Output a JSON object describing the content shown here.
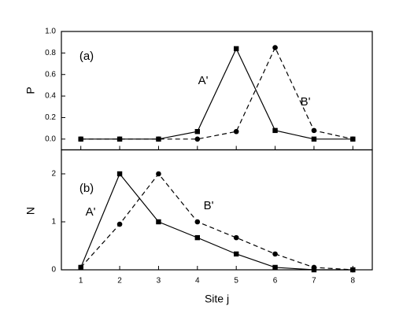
{
  "chart_data": [
    {
      "type": "line",
      "label": "(a)",
      "y_label": "P",
      "x": [
        1,
        2,
        3,
        4,
        5,
        6,
        7,
        8
      ],
      "xlim": [
        0.5,
        8.5
      ],
      "xticks": [
        1,
        2,
        3,
        4,
        5,
        6,
        7,
        8
      ],
      "ylim": [
        -0.1,
        1.0
      ],
      "yticks": [
        {
          "value": 0,
          "label": "0.0"
        },
        {
          "value": 0.2,
          "label": "0.2"
        },
        {
          "value": 0.4,
          "label": "0.4"
        },
        {
          "value": 0.6,
          "label": "0.6"
        },
        {
          "value": 0.8,
          "label": "0.8"
        },
        {
          "value": 1.0,
          "label": "1.0"
        }
      ],
      "series": [
        {
          "name": "A'",
          "color": "#000000",
          "marker": "square",
          "line_style": "solid",
          "values": [
            0,
            0,
            0,
            0.07,
            0.84,
            0.08,
            0,
            0
          ]
        },
        {
          "name": "B'",
          "color": "#000000",
          "marker": "circle",
          "line_style": "dashed",
          "values": [
            0,
            0,
            0,
            0,
            0.07,
            0.85,
            0.08,
            0
          ]
        }
      ]
    },
    {
      "type": "line",
      "label": "(b)",
      "y_label": "N",
      "x_label": "Site j",
      "x": [
        1,
        2,
        3,
        4,
        5,
        6,
        7,
        8
      ],
      "xlim": [
        0.5,
        8.5
      ],
      "xticks": [
        1,
        2,
        3,
        4,
        5,
        6,
        7,
        8
      ],
      "ylim": [
        0,
        2.5
      ],
      "yticks": [
        0,
        1,
        2
      ],
      "series": [
        {
          "name": "A'",
          "color": "#000000",
          "marker": "square",
          "line_style": "solid",
          "values": [
            0.05,
            2.0,
            1.0,
            0.67,
            0.33,
            0.05,
            0,
            0
          ]
        },
        {
          "name": "B'",
          "color": "#000000",
          "marker": "circle",
          "line_style": "dashed",
          "values": [
            0.05,
            0.95,
            2.0,
            1.0,
            0.67,
            0.33,
            0.05,
            0
          ]
        }
      ]
    }
  ]
}
